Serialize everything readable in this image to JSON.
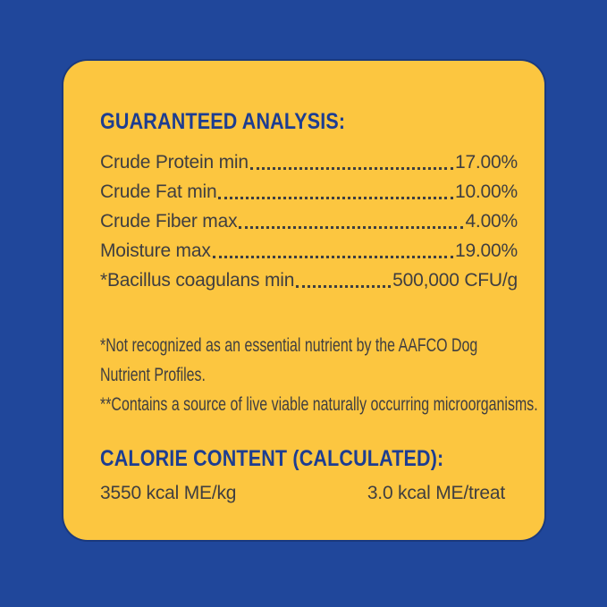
{
  "label_panel": {
    "analysis": {
      "heading": "GUARANTEED ANALYSIS:",
      "rows": [
        {
          "label": "Crude Protein min",
          "value": "17.00%"
        },
        {
          "label": "Crude Fat min",
          "value": "10.00%"
        },
        {
          "label": "Crude Fiber max",
          "value": "4.00%"
        },
        {
          "label": "Moisture max",
          "value": "19.00%"
        },
        {
          "label": "*Bacillus coagulans min",
          "value": "500,000 CFU/g"
        }
      ]
    },
    "footnotes": {
      "line1": "*Not recognized as an essential nutrient by the AAFCO Dog",
      "line2": "Nutrient Profiles.",
      "line3": "**Contains a source of live viable naturally occurring microorganisms."
    },
    "calories": {
      "heading": "CALORIE CONTENT (CALCULATED):",
      "per_kg": "3550 kcal ME/kg",
      "per_treat": "3.0 kcal ME/treat"
    },
    "colors": {
      "background_blue": "#20479B",
      "panel_yellow": "#FCC640",
      "heading_navy": "#1D3D91",
      "body_text": "#3F3E40"
    }
  }
}
